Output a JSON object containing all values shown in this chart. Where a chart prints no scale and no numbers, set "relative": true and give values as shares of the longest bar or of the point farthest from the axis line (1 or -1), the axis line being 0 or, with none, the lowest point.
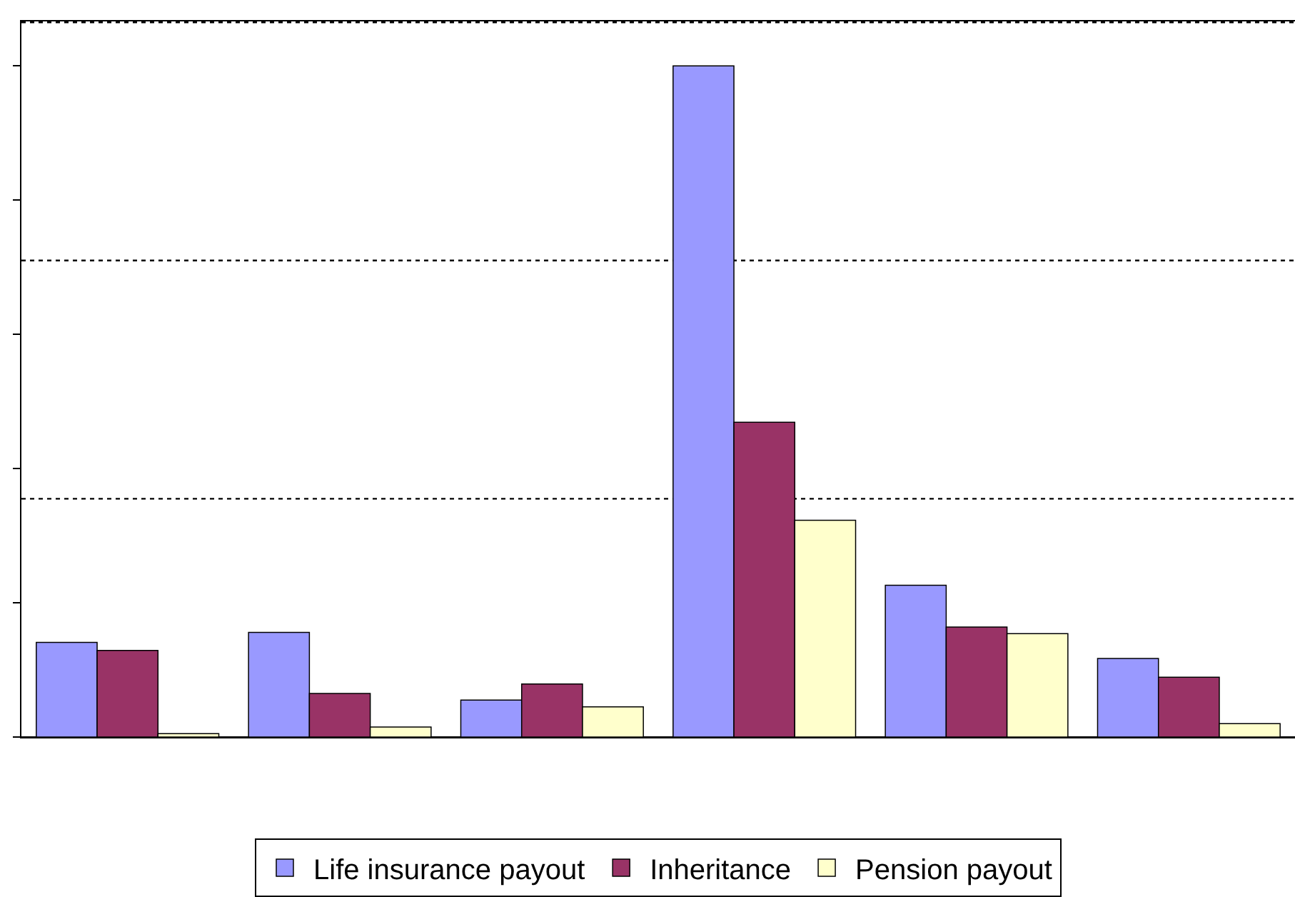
{
  "chart_data": {
    "type": "bar",
    "relative": true,
    "legend": "bottom",
    "ref_lines": [
      {
        "axis": "y",
        "value": 0.355,
        "color": "#000000",
        "line_style": "dotted"
      },
      {
        "axis": "y",
        "value": 0.71,
        "color": "#000000",
        "line_style": "dotted"
      },
      {
        "axis": "y",
        "value": 1.065,
        "color": "#000000",
        "line_style": "dotted"
      }
    ],
    "categories": [
      null,
      null,
      null,
      null,
      null,
      null
    ],
    "series": [
      {
        "name": "Life insurance payout",
        "color": "#9999ff",
        "values": [
          0.141,
          0.156,
          0.055,
          1,
          0.226,
          0.117
        ]
      },
      {
        "name": "Inheritance",
        "color": "#993366",
        "values": [
          0.129,
          0.065,
          0.079,
          0.469,
          0.164,
          0.089
        ]
      },
      {
        "name": "Pension payout",
        "color": "#ffffcc",
        "values": [
          0.005,
          0.015,
          0.045,
          0.323,
          0.154,
          0.02
        ]
      }
    ]
  }
}
